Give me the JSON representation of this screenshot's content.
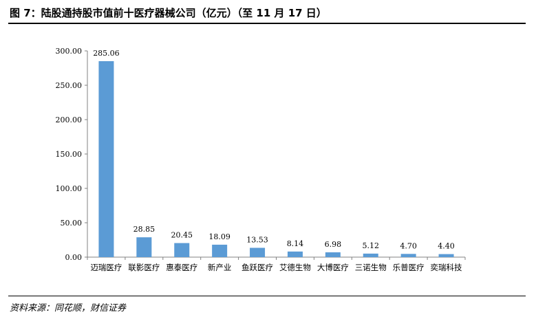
{
  "header": {
    "title": "图 7：陆股通持股市值前十医疗器械公司（亿元）（至 11 月 17 日）"
  },
  "footer": {
    "source": "资料来源：同花顺，财信证券"
  },
  "colors": {
    "bar": "#5b9bd5",
    "axis": "#808080"
  },
  "chart_data": {
    "type": "bar",
    "categories": [
      "迈瑞医疗",
      "联影医疗",
      "惠泰医疗",
      "新产业",
      "鱼跃医疗",
      "艾德生物",
      "大博医疗",
      "三诺生物",
      "乐普医疗",
      "奕瑞科技"
    ],
    "values": [
      285.06,
      28.85,
      20.45,
      18.09,
      13.53,
      8.14,
      6.98,
      5.12,
      4.7,
      4.4
    ],
    "data_labels": [
      "285.06",
      "28.85",
      "20.45",
      "18.09",
      "13.53",
      "8.14",
      "6.98",
      "5.12",
      "4.70",
      "4.40"
    ],
    "yticks": [
      "0.00",
      "50.00",
      "100.00",
      "150.00",
      "200.00",
      "250.00",
      "300.00"
    ],
    "ylim": [
      0,
      300
    ],
    "title": "",
    "xlabel": "",
    "ylabel": "",
    "grid": false,
    "legend": "none"
  }
}
